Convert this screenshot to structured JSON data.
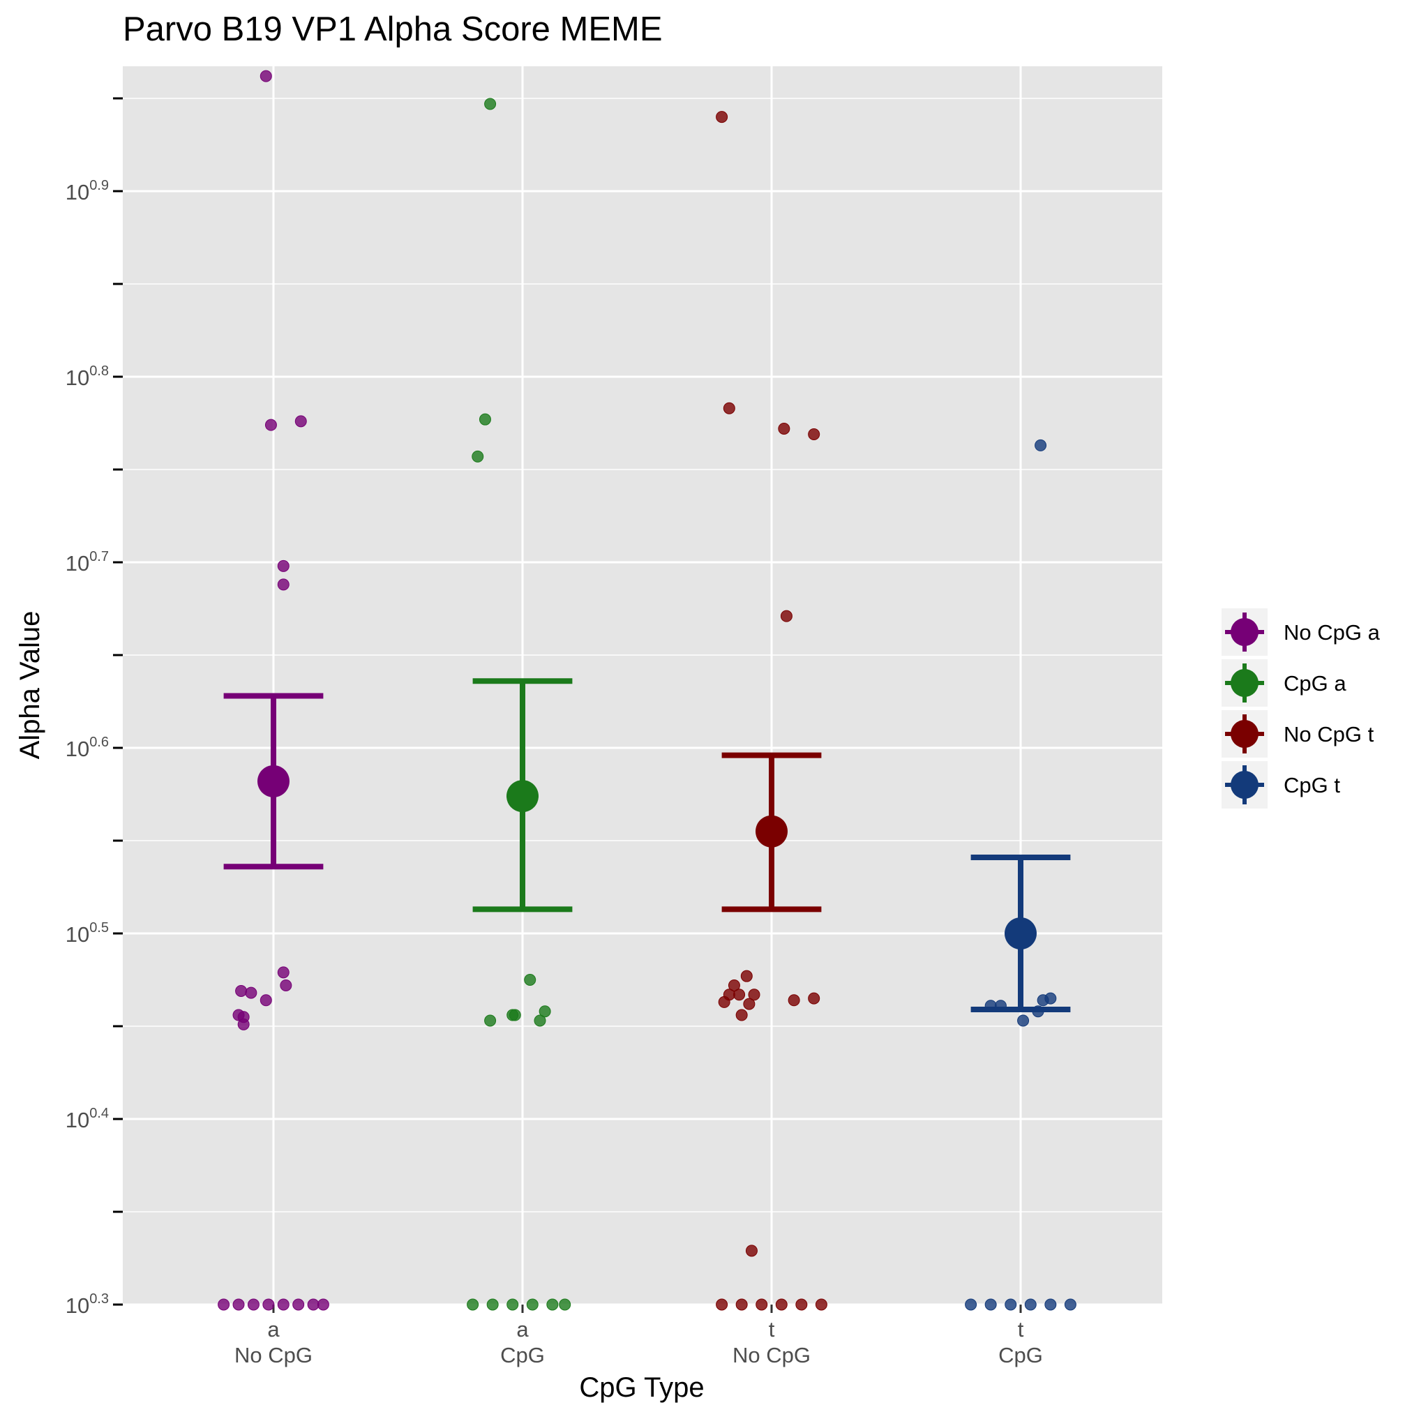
{
  "chart_data": {
    "type": "scatter",
    "title": "Parvo B19 VP1 Alpha Score MEME",
    "xlabel": "CpG Type",
    "ylabel": "Alpha Value",
    "y_scale": "log10",
    "ylim": [
      0.3,
      0.99
    ],
    "y_ticks": [
      {
        "base": "10",
        "exp": "0.3",
        "value": 0.3
      },
      {
        "base": "10",
        "exp": "0.4",
        "value": 0.4
      },
      {
        "base": "10",
        "exp": "0.5",
        "value": 0.5
      },
      {
        "base": "10",
        "exp": "0.6",
        "value": 0.6
      },
      {
        "base": "10",
        "exp": "0.7",
        "value": 0.7
      },
      {
        "base": "10",
        "exp": "0.8",
        "value": 0.8
      },
      {
        "base": "10",
        "exp": "0.9",
        "value": 0.9
      }
    ],
    "categories": [
      {
        "line1": "a",
        "line2": "No CpG"
      },
      {
        "line1": "a",
        "line2": "CpG"
      },
      {
        "line1": "t",
        "line2": "No CpG"
      },
      {
        "line1": "t",
        "line2": "CpG"
      }
    ],
    "legend": {
      "position": "right",
      "entries": [
        "No CpG a",
        "CpG a",
        "No CpG t",
        "CpG t"
      ]
    },
    "series": [
      {
        "name": "No CpG a",
        "color": "#760076",
        "mean": 0.582,
        "ci": [
          0.536,
          0.628
        ],
        "points": [
          {
            "jitter": -0.03,
            "y": 0.962
          },
          {
            "jitter": -0.01,
            "y": 0.774
          },
          {
            "jitter": 0.11,
            "y": 0.776
          },
          {
            "jitter": 0.04,
            "y": 0.698
          },
          {
            "jitter": 0.04,
            "y": 0.688
          },
          {
            "jitter": 0.04,
            "y": 0.479
          },
          {
            "jitter": 0.05,
            "y": 0.472
          },
          {
            "jitter": -0.13,
            "y": 0.469
          },
          {
            "jitter": -0.09,
            "y": 0.468
          },
          {
            "jitter": -0.03,
            "y": 0.464
          },
          {
            "jitter": -0.14,
            "y": 0.456
          },
          {
            "jitter": -0.12,
            "y": 0.455
          },
          {
            "jitter": -0.12,
            "y": 0.451
          },
          {
            "jitter": -0.2,
            "y": 0.3
          },
          {
            "jitter": -0.14,
            "y": 0.3
          },
          {
            "jitter": -0.08,
            "y": 0.3
          },
          {
            "jitter": -0.02,
            "y": 0.3
          },
          {
            "jitter": 0.04,
            "y": 0.3
          },
          {
            "jitter": 0.1,
            "y": 0.3
          },
          {
            "jitter": 0.16,
            "y": 0.3
          },
          {
            "jitter": 0.2,
            "y": 0.3
          }
        ]
      },
      {
        "name": "CpG a",
        "color": "#1b7a1b",
        "mean": 0.574,
        "ci": [
          0.513,
          0.636
        ],
        "points": [
          {
            "jitter": -0.13,
            "y": 0.947
          },
          {
            "jitter": -0.15,
            "y": 0.777
          },
          {
            "jitter": -0.18,
            "y": 0.757
          },
          {
            "jitter": 0.03,
            "y": 0.475
          },
          {
            "jitter": 0.09,
            "y": 0.458
          },
          {
            "jitter": -0.04,
            "y": 0.456
          },
          {
            "jitter": -0.03,
            "y": 0.456
          },
          {
            "jitter": -0.13,
            "y": 0.453
          },
          {
            "jitter": 0.07,
            "y": 0.453
          },
          {
            "jitter": -0.2,
            "y": 0.3
          },
          {
            "jitter": -0.12,
            "y": 0.3
          },
          {
            "jitter": -0.04,
            "y": 0.3
          },
          {
            "jitter": 0.04,
            "y": 0.3
          },
          {
            "jitter": 0.12,
            "y": 0.3
          },
          {
            "jitter": 0.17,
            "y": 0.3
          }
        ]
      },
      {
        "name": "No CpG t",
        "color": "#7a0000",
        "mean": 0.555,
        "ci": [
          0.513,
          0.596
        ],
        "points": [
          {
            "jitter": -0.2,
            "y": 0.94
          },
          {
            "jitter": -0.17,
            "y": 0.783
          },
          {
            "jitter": 0.05,
            "y": 0.772
          },
          {
            "jitter": 0.17,
            "y": 0.769
          },
          {
            "jitter": 0.06,
            "y": 0.671
          },
          {
            "jitter": -0.1,
            "y": 0.477
          },
          {
            "jitter": -0.15,
            "y": 0.472
          },
          {
            "jitter": -0.17,
            "y": 0.467
          },
          {
            "jitter": -0.13,
            "y": 0.467
          },
          {
            "jitter": -0.07,
            "y": 0.467
          },
          {
            "jitter": 0.17,
            "y": 0.465
          },
          {
            "jitter": 0.09,
            "y": 0.464
          },
          {
            "jitter": -0.19,
            "y": 0.463
          },
          {
            "jitter": -0.09,
            "y": 0.462
          },
          {
            "jitter": -0.12,
            "y": 0.456
          },
          {
            "jitter": -0.08,
            "y": 0.329
          },
          {
            "jitter": -0.2,
            "y": 0.3
          },
          {
            "jitter": -0.12,
            "y": 0.3
          },
          {
            "jitter": -0.04,
            "y": 0.3
          },
          {
            "jitter": 0.04,
            "y": 0.3
          },
          {
            "jitter": 0.12,
            "y": 0.3
          },
          {
            "jitter": 0.2,
            "y": 0.3
          }
        ]
      },
      {
        "name": "CpG t",
        "color": "#133a7a",
        "mean": 0.5,
        "ci": [
          0.459,
          0.541
        ],
        "points": [
          {
            "jitter": 0.08,
            "y": 0.763
          },
          {
            "jitter": 0.12,
            "y": 0.465
          },
          {
            "jitter": 0.09,
            "y": 0.464
          },
          {
            "jitter": -0.12,
            "y": 0.461
          },
          {
            "jitter": -0.08,
            "y": 0.461
          },
          {
            "jitter": 0.07,
            "y": 0.458
          },
          {
            "jitter": 0.01,
            "y": 0.453
          },
          {
            "jitter": -0.2,
            "y": 0.3
          },
          {
            "jitter": -0.12,
            "y": 0.3
          },
          {
            "jitter": -0.04,
            "y": 0.3
          },
          {
            "jitter": 0.04,
            "y": 0.3
          },
          {
            "jitter": 0.12,
            "y": 0.3
          },
          {
            "jitter": 0.2,
            "y": 0.3
          }
        ]
      }
    ]
  }
}
